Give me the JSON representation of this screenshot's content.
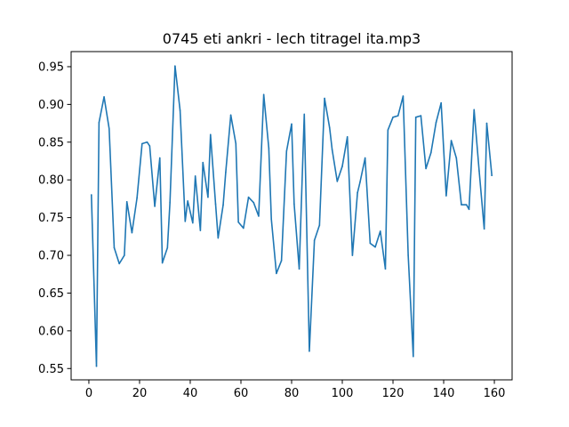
{
  "chart_data": {
    "type": "line",
    "title": "0745 eti ankri - lech titragel ita.mp3",
    "xlabel": "",
    "ylabel": "",
    "xlim": [
      -7,
      167
    ],
    "ylim": [
      0.535,
      0.97
    ],
    "xticks": [
      0,
      20,
      40,
      60,
      80,
      100,
      120,
      140,
      160
    ],
    "yticks": [
      0.55,
      0.6,
      0.65,
      0.7,
      0.75,
      0.8,
      0.85,
      0.9,
      0.95
    ],
    "ytick_labels": [
      "0.55",
      "0.60",
      "0.65",
      "0.70",
      "0.75",
      "0.80",
      "0.85",
      "0.90",
      "0.95"
    ],
    "grid": false,
    "colors": {
      "series": "#1f77b4"
    },
    "series": [
      {
        "x": [
          1,
          3,
          4,
          6,
          8,
          10,
          12,
          14,
          15,
          17,
          19,
          21,
          23,
          24,
          26,
          28,
          29,
          31,
          32,
          34,
          36,
          38,
          39,
          41,
          42,
          44,
          45,
          47,
          48,
          50,
          51,
          53,
          54,
          56,
          58,
          59,
          61,
          63,
          65,
          67,
          69,
          71,
          72,
          74,
          76,
          78,
          80,
          81,
          83,
          85,
          87,
          89,
          91,
          93,
          95,
          96,
          98,
          100,
          102,
          104,
          106,
          107,
          109,
          111,
          113,
          115,
          117,
          118,
          120,
          122,
          124,
          126,
          128,
          129,
          131,
          133,
          135,
          137,
          139,
          141,
          143,
          145,
          147,
          149,
          150,
          152,
          154,
          156,
          157,
          159
        ],
        "y": [
          0.78,
          0.553,
          0.876,
          0.91,
          0.868,
          0.71,
          0.689,
          0.7,
          0.771,
          0.73,
          0.776,
          0.848,
          0.85,
          0.845,
          0.765,
          0.829,
          0.69,
          0.71,
          0.77,
          0.951,
          0.892,
          0.745,
          0.772,
          0.743,
          0.805,
          0.733,
          0.823,
          0.777,
          0.86,
          0.768,
          0.723,
          0.767,
          0.81,
          0.886,
          0.848,
          0.744,
          0.736,
          0.777,
          0.77,
          0.752,
          0.913,
          0.842,
          0.748,
          0.676,
          0.693,
          0.838,
          0.874,
          0.768,
          0.682,
          0.887,
          0.573,
          0.72,
          0.74,
          0.908,
          0.869,
          0.84,
          0.798,
          0.818,
          0.857,
          0.7,
          0.783,
          0.797,
          0.829,
          0.716,
          0.711,
          0.732,
          0.682,
          0.866,
          0.883,
          0.885,
          0.911,
          0.7,
          0.566,
          0.883,
          0.885,
          0.815,
          0.836,
          0.876,
          0.902,
          0.779,
          0.852,
          0.829,
          0.767,
          0.767,
          0.761,
          0.893,
          0.812,
          0.735,
          0.875,
          0.806
        ]
      }
    ]
  }
}
